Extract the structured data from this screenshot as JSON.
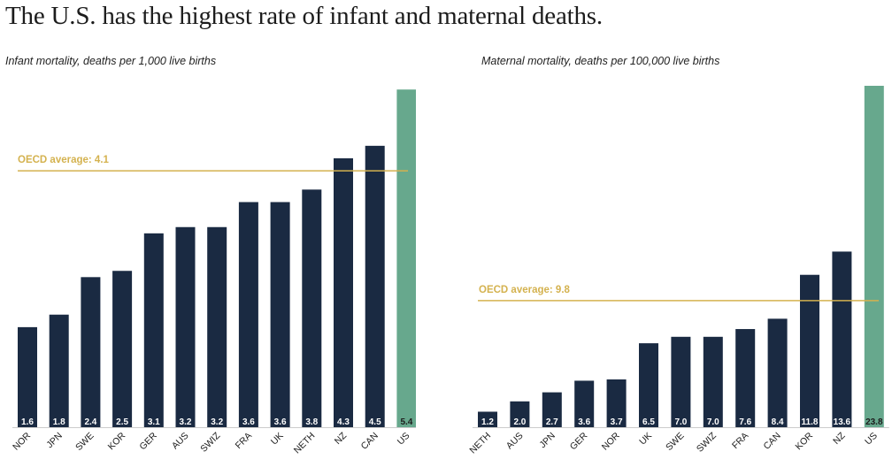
{
  "headline": "The U.S. has the highest rate of infant and maternal deaths.",
  "colors": {
    "bar": "#1a2a42",
    "highlight": "#67a88d",
    "average_line": "#d4b24f",
    "axis": "#cccccc",
    "text": "#1c1c1c",
    "value_label": "#ffffff",
    "highlight_value_label": "#1c1c1c"
  },
  "chart_data": [
    {
      "type": "bar",
      "title": "Infant mortality, deaths per 1,000 live births",
      "categories": [
        "NOR",
        "JPN",
        "SWE",
        "KOR",
        "GER",
        "AUS",
        "SWIZ",
        "FRA",
        "UK",
        "NETH",
        "NZ",
        "CAN",
        "US"
      ],
      "values": [
        1.6,
        1.8,
        2.4,
        2.5,
        3.1,
        3.2,
        3.2,
        3.6,
        3.6,
        3.8,
        4.3,
        4.5,
        5.4
      ],
      "value_labels": [
        "1.6",
        "1.8",
        "2.4",
        "2.5",
        "3.1",
        "3.2",
        "3.2",
        "3.6",
        "3.6",
        "3.8",
        "4.3",
        "4.5",
        "5.4"
      ],
      "highlight": "US",
      "reference_line": {
        "label": "OECD average: 4.1",
        "value": 4.1
      },
      "ylim": [
        0,
        5.4
      ],
      "xlabel": "",
      "ylabel": "",
      "grid": false
    },
    {
      "type": "bar",
      "title": "Maternal mortality, deaths per 100,000 live births",
      "categories": [
        "NETH",
        "AUS",
        "JPN",
        "GER",
        "NOR",
        "UK",
        "SWE",
        "SWIZ",
        "FRA",
        "CAN",
        "KOR",
        "NZ",
        "US"
      ],
      "values": [
        1.2,
        2.0,
        2.7,
        3.6,
        3.7,
        6.5,
        7.0,
        7.0,
        7.6,
        8.4,
        11.8,
        13.6,
        23.8
      ],
      "value_labels": [
        "1.2",
        "2.0",
        "2.7",
        "3.6",
        "3.7",
        "6.5",
        "7.0",
        "7.0",
        "7.6",
        "8.4",
        "11.8",
        "13.6",
        "23.8"
      ],
      "highlight": "US",
      "reference_line": {
        "label": "OECD average: 9.8",
        "value": 9.8
      },
      "ylim": [
        0,
        23.8
      ],
      "axis_break": true,
      "xlabel": "",
      "ylabel": "",
      "grid": false
    }
  ]
}
